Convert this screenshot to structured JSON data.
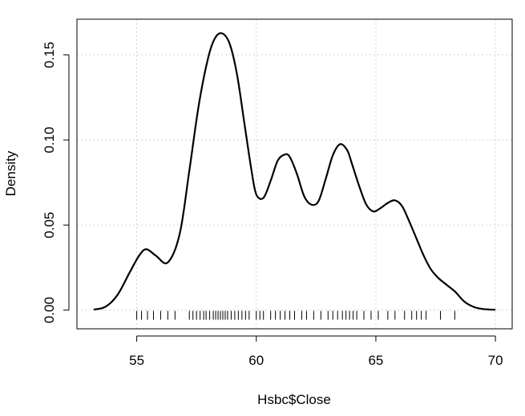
{
  "chart_data": {
    "type": "line",
    "title": "",
    "xlabel": "Hsbc$Close",
    "ylabel": "Density",
    "xlim": [
      52.5,
      70.7
    ],
    "ylim": [
      -0.011,
      0.171
    ],
    "x_ticks": [
      55,
      60,
      65,
      70
    ],
    "x_tick_labels": [
      "55",
      "60",
      "65",
      "70"
    ],
    "y_ticks": [
      0.0,
      0.05,
      0.1,
      0.15
    ],
    "y_tick_labels": [
      "0.00",
      "0.05",
      "0.10",
      "0.15"
    ],
    "grid": true,
    "series": [
      {
        "x": [
          53.2,
          53.7,
          54.2,
          54.7,
          55.1,
          55.4,
          55.8,
          56.3,
          56.8,
          57.2,
          57.6,
          58.0,
          58.3,
          58.6,
          58.9,
          59.2,
          59.5,
          59.8,
          60.0,
          60.3,
          60.6,
          60.9,
          61.2,
          61.4,
          61.7,
          62.0,
          62.3,
          62.6,
          62.9,
          63.2,
          63.5,
          63.8,
          64.0,
          64.3,
          64.6,
          64.9,
          65.2,
          65.5,
          65.8,
          66.1,
          66.4,
          66.7,
          67.0,
          67.3,
          67.6,
          67.9,
          68.3,
          68.7,
          69.1,
          69.5,
          70.0
        ],
        "y": [
          0.0003,
          0.002,
          0.009,
          0.022,
          0.032,
          0.0358,
          0.032,
          0.028,
          0.045,
          0.082,
          0.121,
          0.149,
          0.1605,
          0.1625,
          0.156,
          0.138,
          0.11,
          0.082,
          0.068,
          0.066,
          0.076,
          0.088,
          0.0915,
          0.09,
          0.08,
          0.067,
          0.062,
          0.064,
          0.077,
          0.091,
          0.0975,
          0.094,
          0.086,
          0.073,
          0.062,
          0.058,
          0.06,
          0.063,
          0.0645,
          0.061,
          0.052,
          0.042,
          0.032,
          0.024,
          0.019,
          0.0155,
          0.011,
          0.005,
          0.0018,
          0.0006,
          0.0002
        ]
      }
    ],
    "rug": [
      55.0,
      55.2,
      55.45,
      55.7,
      56.0,
      56.3,
      56.6,
      57.2,
      57.35,
      57.5,
      57.65,
      57.8,
      57.9,
      58.05,
      58.2,
      58.3,
      58.4,
      58.5,
      58.6,
      58.7,
      58.8,
      58.95,
      59.1,
      59.25,
      59.4,
      59.55,
      59.7,
      60.0,
      60.15,
      60.3,
      60.6,
      60.8,
      61.0,
      61.2,
      61.4,
      61.6,
      61.9,
      62.1,
      62.4,
      62.7,
      63.0,
      63.2,
      63.4,
      63.6,
      63.75,
      63.9,
      64.05,
      64.2,
      64.5,
      64.8,
      65.1,
      65.5,
      65.8,
      66.2,
      66.5,
      66.7,
      66.9,
      67.1,
      67.7,
      68.3
    ],
    "line_color": "#000000",
    "grid_color": "#d3d3d3"
  }
}
